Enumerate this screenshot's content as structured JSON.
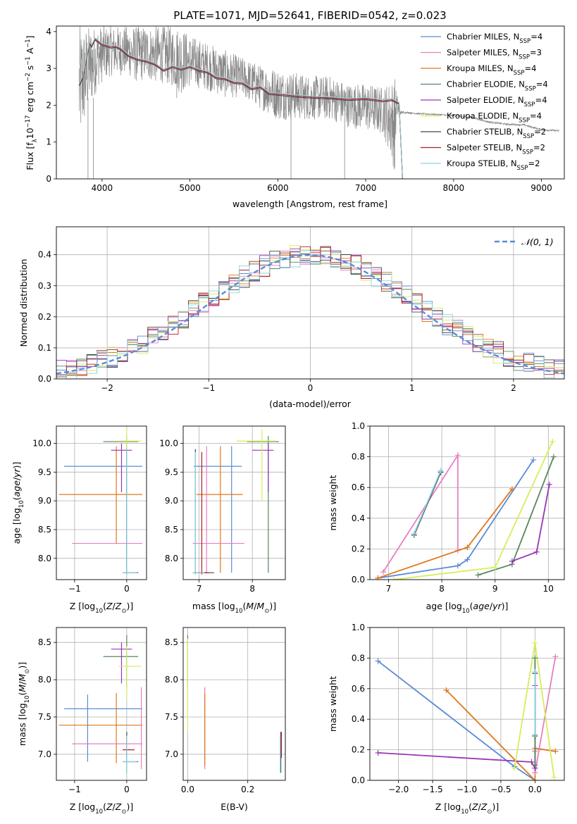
{
  "colors": {
    "cm": "#5b8bd6",
    "sm": "#e77fbf",
    "km": "#e0771b",
    "ce": "#58865e",
    "se": "#9935b5",
    "ke": "#d5ee5a",
    "cs": "#444444",
    "ss": "#b01d29",
    "ks": "#8ad3e4",
    "observed": "#888888",
    "grid": "#b0b0b0",
    "normal": "#5b8bd6"
  },
  "chart_data": [
    {
      "id": "spectrum",
      "type": "line",
      "title": "PLATE=1071, MJD=52641, FIBERID=0542, z=0.023",
      "xlabel": "wavelength [Angstrom, rest frame]",
      "ylabel": "Flux [f_λ10^-17 erg cm^-2 s^-1 A^-1]",
      "xlim": [
        3480,
        9260
      ],
      "ylim": [
        0,
        4.15
      ],
      "xticks": [
        "4000",
        "5000",
        "6000",
        "7000",
        "8000",
        "9000"
      ],
      "yticks": [
        "0",
        "1",
        "2",
        "3",
        "4"
      ],
      "grid": false,
      "legend_position": "top-right",
      "legend": [
        "Chabrier MILES, N_SSP=4",
        "Salpeter MILES, N_SSP=3",
        "Kroupa MILES, N_SSP=4",
        "Chabrier ELODIE, N_SSP=4",
        "Salpeter ELODIE, N_SSP=4",
        "Kroupa ELODIE, N_SSP=4",
        "Chabrier STELIB, N_SSP=2",
        "Salpeter STELIB, N_SSP=2",
        "Kroupa STELIB, N_SSP=2"
      ],
      "observed_envelope": {
        "x": [
          3740,
          3800,
          3850,
          3900,
          3950,
          4000,
          4100,
          4200,
          4300,
          4400,
          4500,
          4600,
          4700,
          4800,
          4900,
          5000,
          5200,
          5400,
          5600,
          5800,
          6000,
          6200,
          6400,
          6600,
          6800,
          7000,
          7200,
          7330,
          7350,
          7400,
          7450,
          7500,
          7600,
          7800,
          8000,
          8200,
          8400,
          8600,
          8800,
          9000,
          9200
        ],
        "lo": [
          0.8,
          1.4,
          1.9,
          2.1,
          2.5,
          2.6,
          2.8,
          2.8,
          2.8,
          2.6,
          2.7,
          2.6,
          2.6,
          2.5,
          2.3,
          2.5,
          2.4,
          2.2,
          2.2,
          1.9,
          1.6,
          1.6,
          1.6,
          1.6,
          1.4,
          1.3,
          1.2,
          0.2,
          1.6,
          1.75,
          1.78,
          1.77,
          1.75,
          1.73,
          1.7,
          1.65,
          1.52,
          1.46,
          1.44,
          1.31,
          1.28
        ],
        "hi": [
          4.15,
          4.15,
          4.15,
          4.15,
          4.15,
          4.15,
          4.15,
          4.15,
          4.15,
          4.15,
          4.15,
          4.15,
          4.15,
          4.15,
          4.15,
          3.9,
          3.7,
          3.5,
          3.3,
          3.1,
          3.0,
          2.9,
          2.8,
          2.8,
          2.6,
          2.6,
          2.5,
          2.8,
          2.4,
          1.85,
          1.83,
          1.82,
          1.79,
          1.77,
          1.74,
          1.7,
          1.57,
          1.51,
          1.49,
          1.36,
          1.33
        ]
      },
      "model_x": [
        3740,
        3780,
        3820,
        3860,
        3880,
        3920,
        3960,
        4000,
        4050,
        4100,
        4150,
        4200,
        4300,
        4400,
        4500,
        4600,
        4700,
        4800,
        4900,
        5000,
        5100,
        5200,
        5300,
        5400,
        5500,
        5600,
        5700,
        5800,
        5900,
        6000,
        6200,
        6400,
        6600,
        6800,
        7000,
        7200,
        7300,
        7380,
        7420
      ],
      "model_y": [
        2.55,
        2.75,
        3.25,
        3.7,
        3.6,
        3.8,
        3.72,
        3.65,
        3.62,
        3.58,
        3.6,
        3.55,
        3.35,
        3.25,
        3.2,
        3.12,
        2.95,
        3.05,
        2.98,
        3.05,
        2.95,
        2.9,
        2.75,
        2.72,
        2.62,
        2.6,
        2.45,
        2.5,
        2.32,
        2.3,
        2.25,
        2.22,
        2.2,
        2.16,
        2.18,
        2.12,
        2.15,
        2.05,
        0.0
      ]
    },
    {
      "id": "residuals",
      "type": "step",
      "xlabel": "(data-model)/error",
      "ylabel": "Normed distribution",
      "xlim": [
        -2.5,
        2.5
      ],
      "ylim": [
        0,
        0.49
      ],
      "xticks": [
        "−2",
        "−1",
        "0",
        "1",
        "2"
      ],
      "yticks": [
        "0.0",
        "0.1",
        "0.2",
        "0.3",
        "0.4"
      ],
      "grid": true,
      "legend_position": "top-right",
      "legend": [
        "𝒩(0, 1)"
      ],
      "bin_width": 0.1
    },
    {
      "id": "z-age",
      "type": "errorbar",
      "xlabel": "Z [log10(Z/Z⊙)]",
      "ylabel": "age [log10(age/yr)]",
      "xlim": [
        -1.35,
        0.38
      ],
      "ylim": [
        7.63,
        10.3
      ],
      "xticks": [
        "−1",
        "0"
      ],
      "yticks": [
        "8.0",
        "8.5",
        "9.0",
        "9.5",
        "10.0"
      ],
      "grid": true,
      "points": [
        {
          "m": "cm",
          "x": 0.0,
          "xlo": -1.2,
          "xhi": 0.3,
          "y": 9.6,
          "ylo": 8.25,
          "yhi": 9.95
        },
        {
          "m": "km",
          "x": -0.2,
          "xlo": -1.3,
          "xhi": 0.3,
          "y": 9.11,
          "ylo": 8.25,
          "yhi": 9.95
        },
        {
          "m": "sm",
          "x": 0.0,
          "xlo": -1.05,
          "xhi": 0.3,
          "y": 8.26,
          "ylo": 7.75,
          "yhi": 9.95
        },
        {
          "m": "ce",
          "x": 0.0,
          "xlo": -0.45,
          "xhi": 0.22,
          "y": 10.03,
          "ylo": 7.75,
          "yhi": 10.13
        },
        {
          "m": "se",
          "x": -0.1,
          "xlo": -0.3,
          "xhi": 0.1,
          "y": 9.88,
          "ylo": 9.15,
          "yhi": 10.0
        },
        {
          "m": "ke",
          "x": 0.0,
          "xlo": -0.15,
          "xhi": 0.28,
          "y": 10.04,
          "ylo": 9.5,
          "yhi": 10.25
        },
        {
          "m": "cs",
          "x": 0.0,
          "xlo": -0.08,
          "xhi": 0.22,
          "y": 7.75,
          "ylo": 7.72,
          "yhi": 9.9
        },
        {
          "m": "ks",
          "x": 0.0,
          "xlo": -0.08,
          "xhi": 0.2,
          "y": 7.75,
          "ylo": 7.72,
          "yhi": 9.9
        }
      ]
    },
    {
      "id": "mass-age",
      "type": "errorbar",
      "xlabel": "mass [log10(M/M⊙)]",
      "xlim": [
        6.7,
        8.62
      ],
      "ylim": [
        7.63,
        10.3
      ],
      "xticks": [
        "7",
        "8"
      ],
      "yticks": [
        "8.0",
        "8.5",
        "9.0",
        "9.5",
        "10.0"
      ],
      "grid": true,
      "points": [
        {
          "m": "cm",
          "x": 7.61,
          "xlo": 6.9,
          "xhi": 7.8,
          "y": 9.6,
          "ylo": 7.75,
          "yhi": 9.95
        },
        {
          "m": "km",
          "x": 7.4,
          "xlo": 6.95,
          "xhi": 7.82,
          "y": 9.11,
          "ylo": 7.75,
          "yhi": 9.95
        },
        {
          "m": "sm",
          "x": 7.14,
          "xlo": 6.88,
          "xhi": 7.85,
          "y": 8.26,
          "ylo": 7.75,
          "yhi": 9.95
        },
        {
          "m": "ce",
          "x": 8.3,
          "xlo": 7.9,
          "xhi": 8.5,
          "y": 10.03,
          "ylo": 7.75,
          "yhi": 10.13
        },
        {
          "m": "se",
          "x": 8.3,
          "xlo": 8.0,
          "xhi": 8.4,
          "y": 9.88,
          "ylo": 9.15,
          "yhi": 10.0
        },
        {
          "m": "ke",
          "x": 8.18,
          "xlo": 7.7,
          "xhi": 8.45,
          "y": 10.04,
          "ylo": 9.0,
          "yhi": 10.25
        },
        {
          "m": "cs",
          "x": 6.93,
          "xlo": 6.88,
          "xhi": 7.28,
          "y": 7.75,
          "ylo": 7.72,
          "yhi": 9.9
        },
        {
          "m": "ss",
          "x": 7.05,
          "xlo": 6.98,
          "xhi": 7.18,
          "y": 7.75,
          "ylo": 7.72,
          "yhi": 9.85
        },
        {
          "m": "ks",
          "x": 6.93,
          "xlo": 6.88,
          "xhi": 7.1,
          "y": 7.75,
          "ylo": 7.72,
          "yhi": 9.85
        }
      ]
    },
    {
      "id": "age-weight",
      "type": "line",
      "xlabel": "age [log10(age/yr)]",
      "ylabel": "mass weight",
      "xlim": [
        6.65,
        10.3
      ],
      "ylim": [
        0,
        1.0
      ],
      "xticks": [
        "7",
        "8",
        "9",
        "10"
      ],
      "yticks": [
        "0.0",
        "0.2",
        "0.4",
        "0.6",
        "0.8",
        "1.0"
      ],
      "grid": true,
      "series": [
        {
          "m": "cm",
          "x": [
            6.8,
            8.3,
            8.48,
            9.72
          ],
          "y": [
            0.01,
            0.09,
            0.13,
            0.78
          ]
        },
        {
          "m": "sm",
          "x": [
            6.9,
            8.3,
            8.3
          ],
          "y": [
            0.05,
            0.81,
            0.19
          ]
        },
        {
          "m": "km",
          "x": [
            6.8,
            8.48,
            9.32
          ],
          "y": [
            0.01,
            0.21,
            0.59
          ]
        },
        {
          "m": "ce",
          "x": [
            8.68,
            9.32,
            10.1
          ],
          "y": [
            0.03,
            0.1,
            0.8
          ]
        },
        {
          "m": "se",
          "x": [
            9.32,
            9.78,
            10.02
          ],
          "y": [
            0.12,
            0.18,
            0.62
          ]
        },
        {
          "m": "ke",
          "x": [
            7.1,
            9.0,
            10.08
          ],
          "y": [
            0.0,
            0.08,
            0.9
          ]
        },
        {
          "m": "cs",
          "x": [
            7.48,
            7.98
          ],
          "y": [
            0.29,
            0.7
          ]
        },
        {
          "m": "ks",
          "x": [
            7.48,
            7.98
          ],
          "y": [
            0.3,
            0.71
          ]
        }
      ]
    },
    {
      "id": "z-mass",
      "type": "errorbar",
      "xlabel": "Z [log10(Z/Z⊙)]",
      "ylabel": "mass [log10(M/M⊙)]",
      "xlim": [
        -1.35,
        0.38
      ],
      "ylim": [
        6.65,
        8.7
      ],
      "xticks": [
        "−1",
        "0"
      ],
      "yticks": [
        "7.0",
        "7.5",
        "8.0",
        "8.5"
      ],
      "grid": true,
      "points": [
        {
          "m": "cm",
          "x": -0.75,
          "xlo": -1.2,
          "xhi": 0.3,
          "y": 7.61,
          "ylo": 6.9,
          "yhi": 7.8
        },
        {
          "m": "km",
          "x": -0.2,
          "xlo": -1.3,
          "xhi": 0.3,
          "y": 7.39,
          "ylo": 6.88,
          "yhi": 7.82
        },
        {
          "m": "sm",
          "x": 0.28,
          "xlo": -1.05,
          "xhi": 0.3,
          "y": 7.14,
          "ylo": 6.8,
          "yhi": 7.9
        },
        {
          "m": "ce",
          "x": 0.0,
          "xlo": -0.45,
          "xhi": 0.22,
          "y": 8.31,
          "ylo": 7.9,
          "yhi": 8.6
        },
        {
          "m": "se",
          "x": -0.1,
          "xlo": -0.3,
          "xhi": 0.1,
          "y": 8.41,
          "ylo": 7.95,
          "yhi": 8.5
        },
        {
          "m": "ke",
          "x": 0.0,
          "xlo": -0.15,
          "xhi": 0.28,
          "y": 8.18,
          "ylo": 7.75,
          "yhi": 8.45
        },
        {
          "m": "cs",
          "x": 0.0,
          "xlo": -0.08,
          "xhi": 0.22,
          "y": 6.9,
          "ylo": 6.75,
          "yhi": 7.3
        },
        {
          "m": "ss",
          "x": 0.0,
          "xlo": -0.08,
          "xhi": 0.15,
          "y": 7.06,
          "ylo": 6.95,
          "yhi": 7.25
        },
        {
          "m": "ks",
          "x": 0.0,
          "xlo": -0.08,
          "xhi": 0.2,
          "y": 6.9,
          "ylo": 6.75,
          "yhi": 7.25
        }
      ]
    },
    {
      "id": "ebv-mass",
      "type": "errorbar",
      "xlabel": "E(B-V)",
      "xlim": [
        -0.015,
        0.325
      ],
      "ylim": [
        6.65,
        8.7
      ],
      "xticks": [
        "0.0",
        "0.2"
      ],
      "yticks": [
        "7.0",
        "7.5",
        "8.0",
        "8.5"
      ],
      "grid": true,
      "points": [
        {
          "m": "ce",
          "x": 0.0,
          "y": 8.31,
          "ylo": 7.9,
          "yhi": 8.6
        },
        {
          "m": "ke",
          "x": 0.0,
          "y": 8.18,
          "ylo": 7.3,
          "yhi": 8.55
        },
        {
          "m": "sm",
          "x": 0.057,
          "y": 7.14,
          "ylo": 6.8,
          "yhi": 7.9
        },
        {
          "m": "km",
          "x": 0.057,
          "y": 7.39,
          "ylo": 6.85,
          "yhi": 7.82
        },
        {
          "m": "cs",
          "x": 0.31,
          "y": 6.9,
          "ylo": 6.75,
          "yhi": 7.3
        },
        {
          "m": "ss",
          "x": 0.312,
          "y": 7.06,
          "ylo": 6.95,
          "yhi": 7.3
        },
        {
          "m": "ks",
          "x": 0.308,
          "y": 6.9,
          "ylo": 6.75,
          "yhi": 7.25
        }
      ]
    },
    {
      "id": "z-weight",
      "type": "line",
      "xlabel": "Z [log10(Z/Z⊙)]",
      "ylabel": "mass weight",
      "xlim": [
        -2.42,
        0.43
      ],
      "ylim": [
        0,
        1.0
      ],
      "xticks": [
        "−2.0",
        "−1.5",
        "−1.0",
        "−0.5",
        "0.0"
      ],
      "yticks": [
        "0.0",
        "0.2",
        "0.4",
        "0.6",
        "0.8",
        "1.0"
      ],
      "grid": true,
      "series": [
        {
          "m": "cm",
          "x": [
            -2.3,
            -0.3,
            0.0
          ],
          "y": [
            0.78,
            0.09,
            0.0
          ]
        },
        {
          "m": "km",
          "x": [
            -1.3,
            0.0,
            0.0,
            0.3
          ],
          "y": [
            0.59,
            0.0,
            0.21,
            0.19
          ]
        },
        {
          "m": "sm",
          "x": [
            0.3,
            0.0,
            0.0
          ],
          "y": [
            0.81,
            0.05,
            0.19
          ]
        },
        {
          "m": "se",
          "x": [
            -2.3,
            -0.05,
            0.0,
            0.0
          ],
          "y": [
            0.18,
            0.12,
            0.08,
            0.62
          ]
        },
        {
          "m": "ke",
          "x": [
            -0.3,
            0.0,
            0.28
          ],
          "y": [
            0.08,
            0.9,
            0.02
          ]
        },
        {
          "m": "ce",
          "x": [
            0.0,
            0.0
          ],
          "y": [
            0.1,
            0.8
          ]
        },
        {
          "m": "cs",
          "x": [
            0.0,
            0.0
          ],
          "y": [
            0.29,
            0.7
          ]
        },
        {
          "m": "ks",
          "x": [
            0.0,
            0.0
          ],
          "y": [
            0.3,
            0.71
          ]
        }
      ]
    }
  ]
}
